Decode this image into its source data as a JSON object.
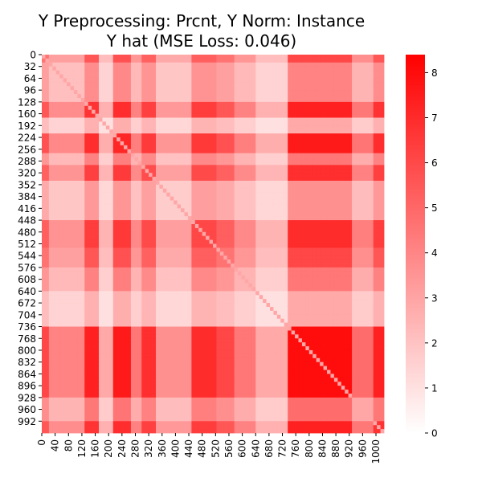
{
  "chart_data": {
    "type": "heatmap",
    "title_lines": [
      "Y Preprocessing: Prcnt, Y Norm: Instance",
      "Y hat (MSE Loss: 0.046)"
    ],
    "xlabel": "",
    "ylabel": "",
    "n": 1024,
    "x_ticks": [
      0,
      40,
      80,
      120,
      160,
      200,
      240,
      280,
      320,
      360,
      400,
      440,
      480,
      520,
      560,
      600,
      640,
      680,
      720,
      760,
      800,
      840,
      880,
      920,
      960,
      1000
    ],
    "y_ticks": [
      0,
      32,
      64,
      96,
      128,
      160,
      192,
      224,
      256,
      288,
      320,
      352,
      384,
      416,
      448,
      480,
      512,
      544,
      576,
      608,
      640,
      672,
      704,
      736,
      768,
      800,
      832,
      864,
      896,
      928,
      960,
      992
    ],
    "colorbar": {
      "min": 0,
      "max": 8.4,
      "ticks": [
        0,
        1,
        2,
        3,
        4,
        5,
        6,
        7,
        8
      ]
    },
    "colors": {
      "low": "#ffffff",
      "high": "#ff0000"
    },
    "profile_bands": [
      {
        "range": [
          0,
          24
        ],
        "level": 0.55
      },
      {
        "range": [
          24,
          128
        ],
        "level": 0.25
      },
      {
        "range": [
          128,
          176
        ],
        "level": 0.8
      },
      {
        "range": [
          176,
          216
        ],
        "level": 0.12
      },
      {
        "range": [
          216,
          270
        ],
        "level": 0.85
      },
      {
        "range": [
          270,
          300
        ],
        "level": 0.3
      },
      {
        "range": [
          300,
          340
        ],
        "level": 0.7
      },
      {
        "range": [
          340,
          448
        ],
        "level": 0.2
      },
      {
        "range": [
          448,
          520
        ],
        "level": 0.72
      },
      {
        "range": [
          520,
          580
        ],
        "level": 0.55
      },
      {
        "range": [
          580,
          640
        ],
        "level": 0.3
      },
      {
        "range": [
          640,
          740
        ],
        "level": 0.12
      },
      {
        "range": [
          740,
          930
        ],
        "level": 0.95
      },
      {
        "range": [
          930,
          990
        ],
        "level": 0.35
      },
      {
        "range": [
          990,
          1024
        ],
        "level": 0.8
      }
    ]
  }
}
